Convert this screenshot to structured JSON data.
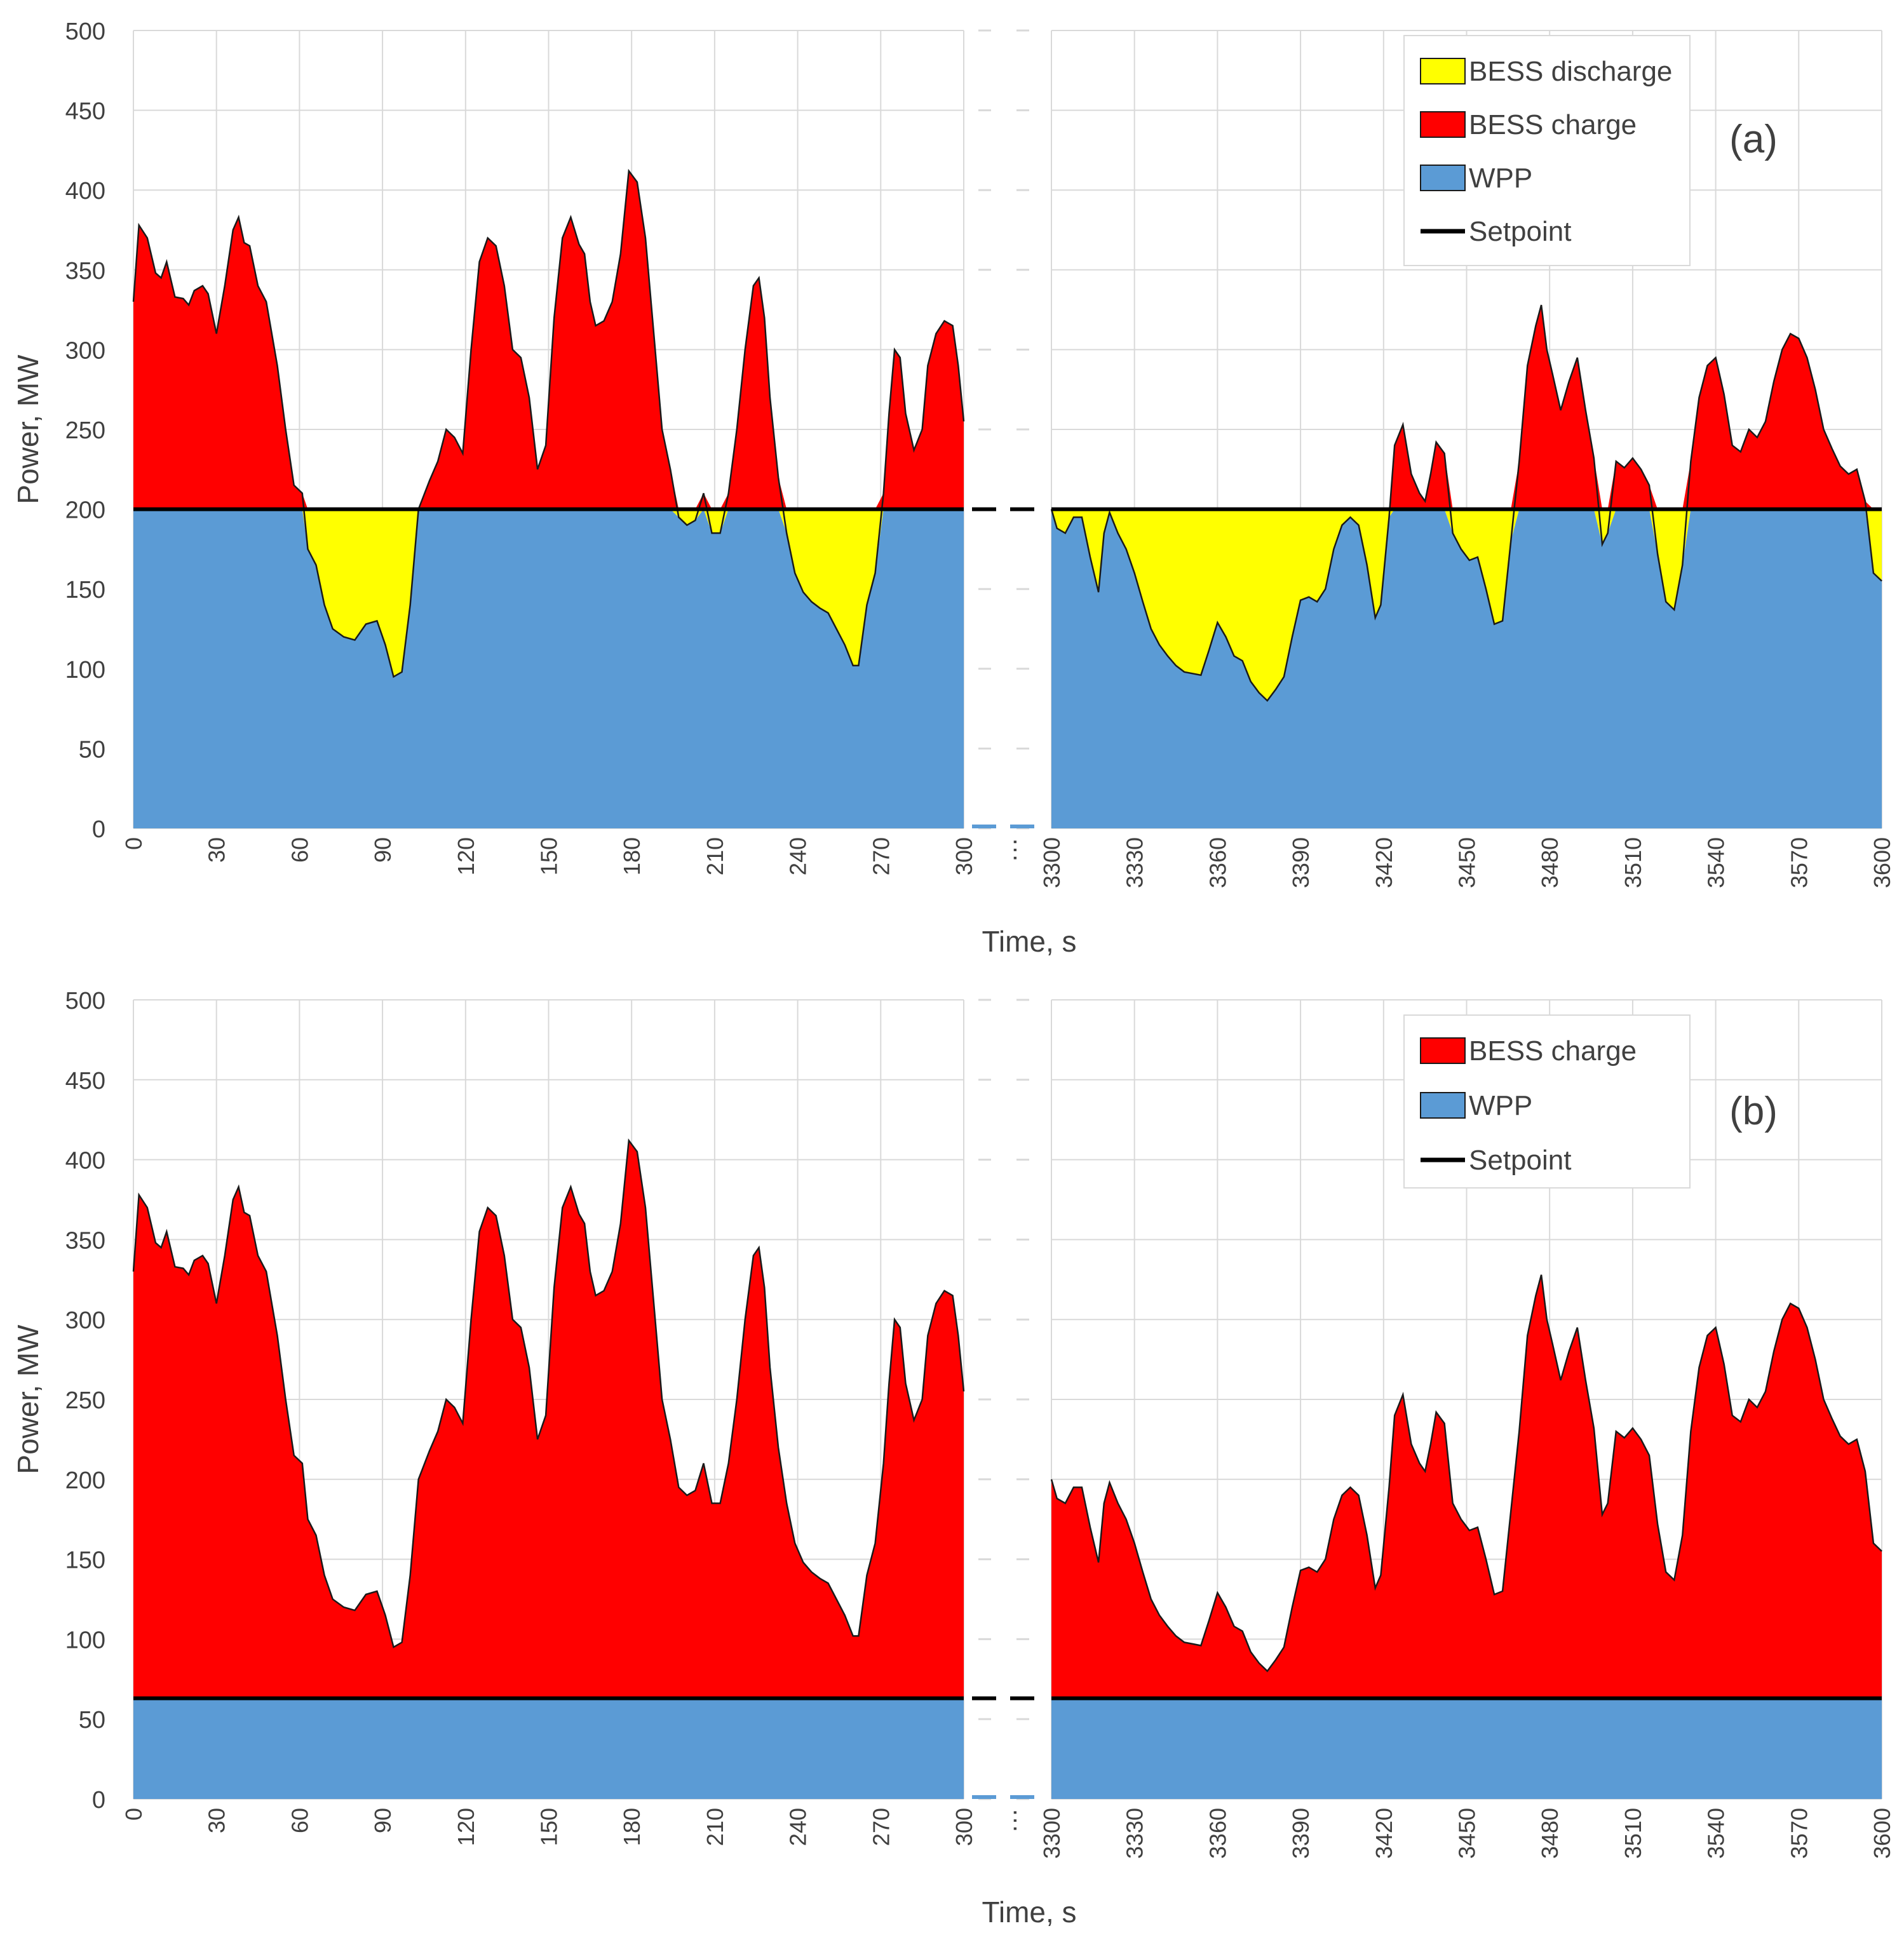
{
  "chart_data": [
    {
      "panel_label": "(a)",
      "type": "area",
      "ylabel": "Power, MW",
      "xlabel": "Time, s",
      "ylim": [
        0,
        500
      ],
      "y_ticks": [
        0,
        50,
        100,
        150,
        200,
        250,
        300,
        350,
        400,
        450,
        500
      ],
      "x_segments": [
        {
          "range": [
            0,
            300
          ],
          "ticks": [
            0,
            30,
            60,
            90,
            120,
            150,
            180,
            210,
            240,
            270,
            300
          ]
        },
        {
          "range": [
            3300,
            3600
          ],
          "ticks": [
            3300,
            3330,
            3360,
            3390,
            3420,
            3450,
            3480,
            3510,
            3540,
            3570,
            3600
          ]
        }
      ],
      "axis_break_label": "…",
      "setpoint": 200,
      "legend": [
        "BESS discharge",
        "BESS charge",
        "WPP",
        "Setpoint"
      ],
      "legend_position": "top-right",
      "colors": {
        "discharge": "#ffff00",
        "charge": "#ff0000",
        "wpp": "#5b9bd5",
        "setpoint": "#000000"
      },
      "wind_power": [
        [
          [
            0,
            330
          ],
          [
            2,
            378
          ],
          [
            5,
            370
          ],
          [
            8,
            348
          ],
          [
            10,
            345
          ],
          [
            12,
            355
          ],
          [
            15,
            333
          ],
          [
            18,
            332
          ],
          [
            20,
            328
          ],
          [
            22,
            337
          ],
          [
            25,
            340
          ],
          [
            27,
            335
          ],
          [
            30,
            310
          ],
          [
            33,
            340
          ],
          [
            36,
            375
          ],
          [
            38,
            383
          ],
          [
            40,
            367
          ],
          [
            42,
            365
          ],
          [
            45,
            340
          ],
          [
            48,
            330
          ],
          [
            52,
            290
          ],
          [
            55,
            250
          ],
          [
            58,
            215
          ],
          [
            61,
            210
          ],
          [
            63,
            175
          ],
          [
            66,
            165
          ],
          [
            69,
            140
          ],
          [
            72,
            125
          ],
          [
            76,
            120
          ],
          [
            80,
            118
          ],
          [
            84,
            128
          ],
          [
            88,
            130
          ],
          [
            91,
            115
          ],
          [
            94,
            95
          ],
          [
            97,
            98
          ],
          [
            100,
            140
          ],
          [
            103,
            200
          ],
          [
            107,
            218
          ],
          [
            110,
            230
          ],
          [
            113,
            250
          ],
          [
            116,
            245
          ],
          [
            119,
            235
          ],
          [
            122,
            300
          ],
          [
            125,
            355
          ],
          [
            128,
            370
          ],
          [
            131,
            365
          ],
          [
            134,
            340
          ],
          [
            137,
            300
          ],
          [
            140,
            295
          ],
          [
            143,
            270
          ],
          [
            146,
            225
          ],
          [
            149,
            240
          ],
          [
            152,
            320
          ],
          [
            155,
            370
          ],
          [
            158,
            383
          ],
          [
            161,
            366
          ],
          [
            163,
            360
          ],
          [
            165,
            330
          ],
          [
            167,
            315
          ],
          [
            170,
            318
          ],
          [
            173,
            330
          ],
          [
            176,
            360
          ],
          [
            179,
            412
          ],
          [
            182,
            405
          ],
          [
            185,
            370
          ],
          [
            188,
            310
          ],
          [
            191,
            250
          ],
          [
            194,
            225
          ],
          [
            197,
            195
          ],
          [
            200,
            190
          ],
          [
            203,
            193
          ],
          [
            206,
            210
          ],
          [
            209,
            185
          ],
          [
            212,
            185
          ],
          [
            215,
            210
          ],
          [
            218,
            250
          ],
          [
            221,
            300
          ],
          [
            224,
            340
          ],
          [
            226,
            345
          ],
          [
            228,
            320
          ],
          [
            230,
            270
          ],
          [
            233,
            220
          ],
          [
            236,
            185
          ],
          [
            239,
            160
          ],
          [
            242,
            148
          ],
          [
            245,
            142
          ],
          [
            248,
            138
          ],
          [
            251,
            135
          ],
          [
            254,
            125
          ],
          [
            257,
            115
          ],
          [
            260,
            102
          ],
          [
            262,
            102
          ],
          [
            265,
            140
          ],
          [
            268,
            160
          ],
          [
            271,
            210
          ],
          [
            273,
            260
          ],
          [
            275,
            300
          ],
          [
            277,
            295
          ],
          [
            279,
            260
          ],
          [
            282,
            237
          ],
          [
            285,
            250
          ],
          [
            287,
            290
          ],
          [
            290,
            310
          ],
          [
            293,
            318
          ],
          [
            296,
            315
          ],
          [
            298,
            290
          ],
          [
            300,
            255
          ]
        ],
        [
          [
            3300,
            200
          ],
          [
            3302,
            188
          ],
          [
            3305,
            185
          ],
          [
            3308,
            195
          ],
          [
            3311,
            195
          ],
          [
            3314,
            170
          ],
          [
            3317,
            148
          ],
          [
            3319,
            185
          ],
          [
            3321,
            198
          ],
          [
            3324,
            185
          ],
          [
            3327,
            175
          ],
          [
            3330,
            160
          ],
          [
            3333,
            142
          ],
          [
            3336,
            125
          ],
          [
            3339,
            115
          ],
          [
            3342,
            108
          ],
          [
            3345,
            102
          ],
          [
            3348,
            98
          ],
          [
            3351,
            97
          ],
          [
            3354,
            96
          ],
          [
            3357,
            112
          ],
          [
            3360,
            129
          ],
          [
            3363,
            120
          ],
          [
            3366,
            108
          ],
          [
            3369,
            105
          ],
          [
            3372,
            92
          ],
          [
            3375,
            85
          ],
          [
            3378,
            80
          ],
          [
            3381,
            87
          ],
          [
            3384,
            95
          ],
          [
            3387,
            120
          ],
          [
            3390,
            143
          ],
          [
            3393,
            145
          ],
          [
            3396,
            142
          ],
          [
            3399,
            150
          ],
          [
            3402,
            175
          ],
          [
            3405,
            190
          ],
          [
            3408,
            195
          ],
          [
            3411,
            190
          ],
          [
            3414,
            165
          ],
          [
            3417,
            132
          ],
          [
            3419,
            140
          ],
          [
            3422,
            195
          ],
          [
            3424,
            240
          ],
          [
            3427,
            253
          ],
          [
            3430,
            222
          ],
          [
            3433,
            210
          ],
          [
            3435,
            205
          ],
          [
            3437,
            222
          ],
          [
            3439,
            242
          ],
          [
            3442,
            235
          ],
          [
            3445,
            185
          ],
          [
            3448,
            175
          ],
          [
            3451,
            168
          ],
          [
            3454,
            170
          ],
          [
            3457,
            150
          ],
          [
            3460,
            128
          ],
          [
            3463,
            130
          ],
          [
            3466,
            180
          ],
          [
            3469,
            230
          ],
          [
            3472,
            290
          ],
          [
            3475,
            315
          ],
          [
            3477,
            328
          ],
          [
            3479,
            300
          ],
          [
            3481,
            285
          ],
          [
            3484,
            262
          ],
          [
            3487,
            280
          ],
          [
            3490,
            295
          ],
          [
            3493,
            262
          ],
          [
            3496,
            232
          ],
          [
            3499,
            178
          ],
          [
            3501,
            185
          ],
          [
            3504,
            230
          ],
          [
            3507,
            226
          ],
          [
            3510,
            232
          ],
          [
            3513,
            225
          ],
          [
            3516,
            215
          ],
          [
            3519,
            172
          ],
          [
            3522,
            142
          ],
          [
            3525,
            137
          ],
          [
            3528,
            165
          ],
          [
            3531,
            230
          ],
          [
            3534,
            270
          ],
          [
            3537,
            290
          ],
          [
            3540,
            295
          ],
          [
            3543,
            272
          ],
          [
            3546,
            240
          ],
          [
            3549,
            236
          ],
          [
            3552,
            250
          ],
          [
            3555,
            245
          ],
          [
            3558,
            255
          ],
          [
            3561,
            280
          ],
          [
            3564,
            300
          ],
          [
            3567,
            310
          ],
          [
            3570,
            307
          ],
          [
            3573,
            295
          ],
          [
            3576,
            275
          ],
          [
            3579,
            250
          ],
          [
            3582,
            238
          ],
          [
            3585,
            227
          ],
          [
            3588,
            222
          ],
          [
            3591,
            225
          ],
          [
            3594,
            205
          ],
          [
            3597,
            160
          ],
          [
            3600,
            155
          ]
        ]
      ]
    },
    {
      "panel_label": "(b)",
      "type": "area",
      "ylabel": "Power, MW",
      "xlabel": "Time, s",
      "ylim": [
        0,
        500
      ],
      "y_ticks": [
        0,
        50,
        100,
        150,
        200,
        250,
        300,
        350,
        400,
        450,
        500
      ],
      "x_segments": [
        {
          "range": [
            0,
            300
          ],
          "ticks": [
            0,
            30,
            60,
            90,
            120,
            150,
            180,
            210,
            240,
            270,
            300
          ]
        },
        {
          "range": [
            3300,
            3600
          ],
          "ticks": [
            3300,
            3330,
            3360,
            3390,
            3420,
            3450,
            3480,
            3510,
            3540,
            3570,
            3600
          ]
        }
      ],
      "axis_break_label": "…",
      "setpoint": 63,
      "legend": [
        "BESS charge",
        "WPP",
        "Setpoint"
      ],
      "legend_position": "top-right",
      "colors": {
        "charge": "#ff0000",
        "wpp": "#5b9bd5",
        "setpoint": "#000000"
      },
      "wind_power": "same as (a)"
    }
  ]
}
